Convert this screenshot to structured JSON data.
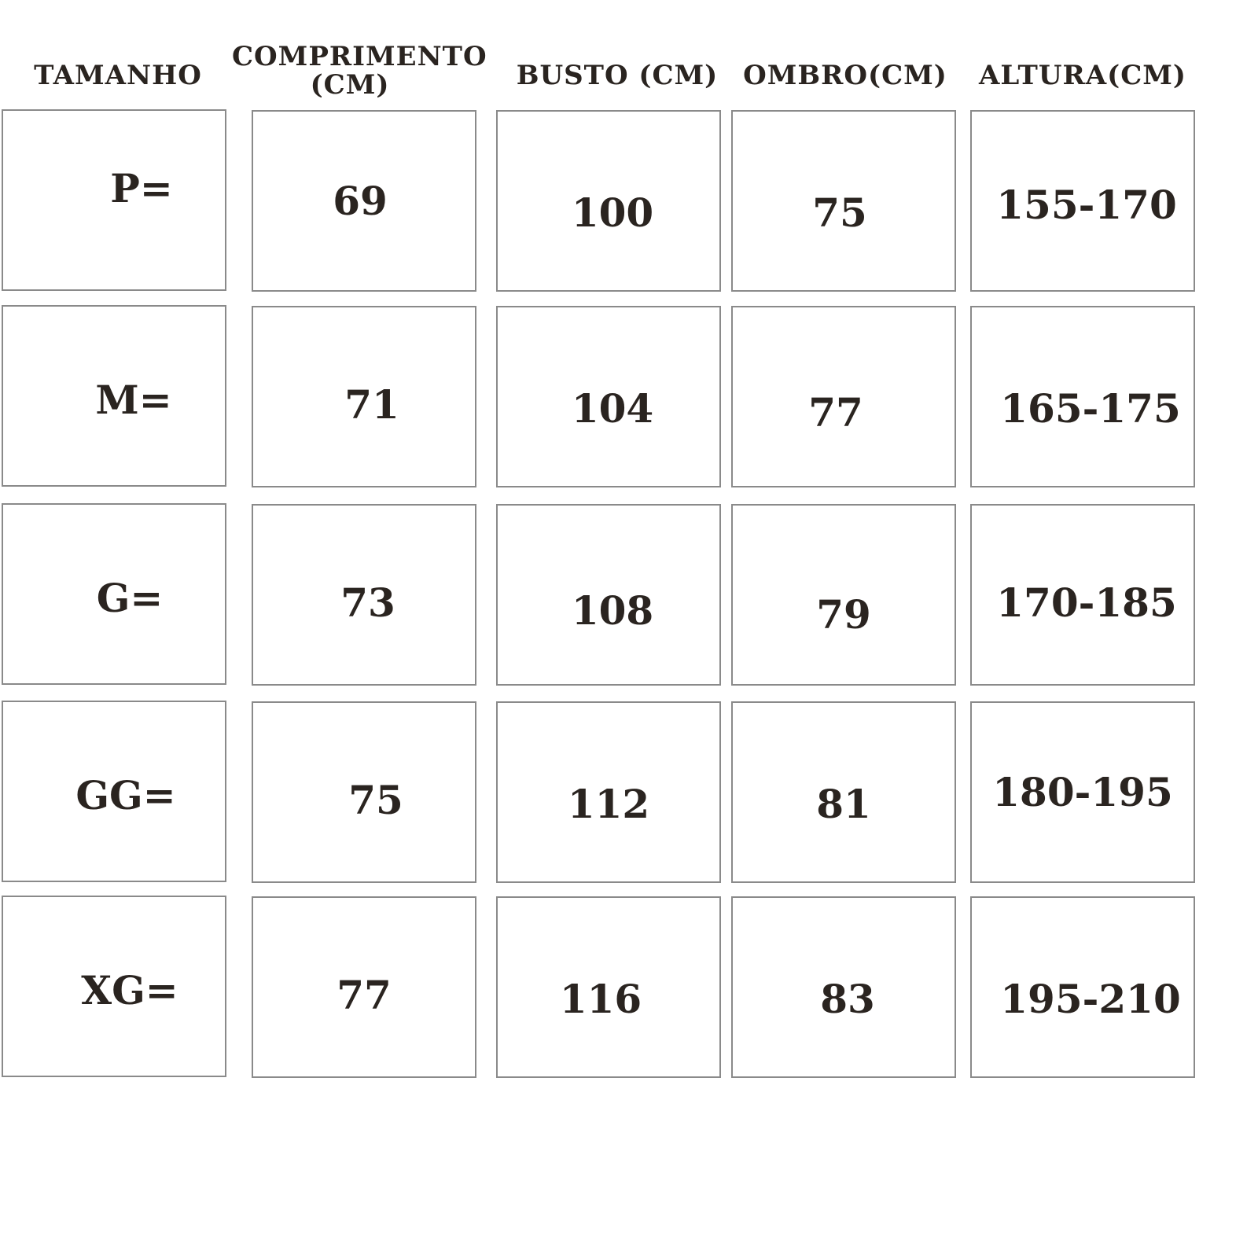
{
  "headers": [
    "TAMANHO",
    "COMPRIMENTO (CM)",
    "BUSTO (CM)",
    "OMBRO(CM)",
    "ALTURA(CM)"
  ],
  "rows": [
    [
      "P=",
      "69",
      "100",
      "75",
      "155-170"
    ],
    [
      "M=",
      "71",
      "104",
      "77",
      "165-175"
    ],
    [
      "G=",
      "73",
      "108",
      "79",
      "170-185"
    ],
    [
      "GG=",
      "75",
      "112",
      "81",
      "180-195"
    ],
    [
      "XG=",
      "77",
      "116",
      "83",
      "195-210"
    ]
  ],
  "colors": {
    "text": "#2a2420",
    "border": "#8a8a8a",
    "background": "#ffffff"
  }
}
